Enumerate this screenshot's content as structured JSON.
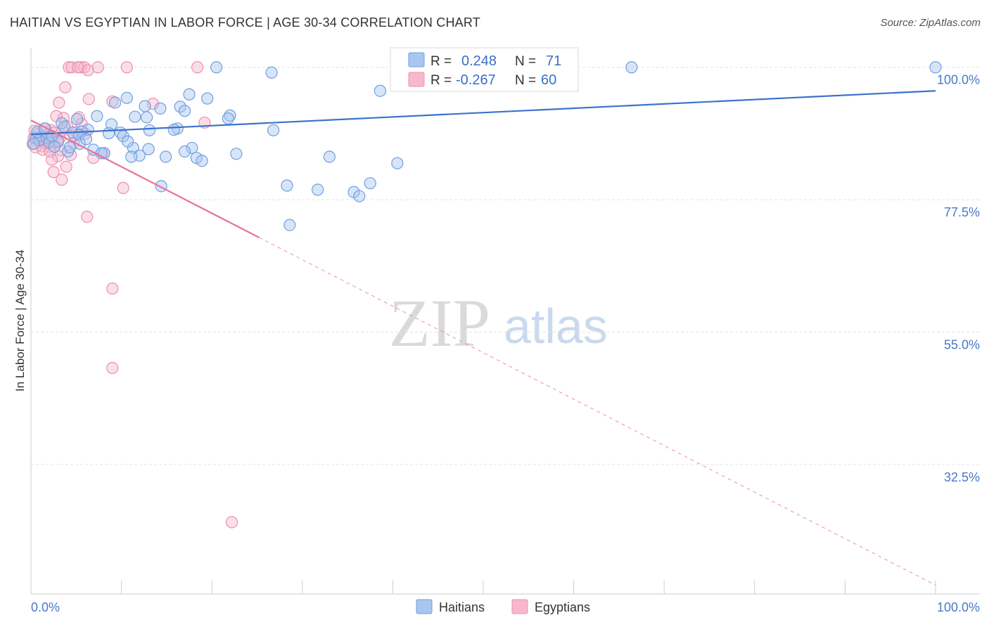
{
  "title": "HAITIAN VS EGYPTIAN IN LABOR FORCE | AGE 30-34 CORRELATION CHART",
  "source": "Source: ZipAtlas.com",
  "watermark": {
    "zip": "ZIP",
    "atlas": "atlas"
  },
  "colors": {
    "haitians_fill": "#a9c6f0",
    "haitians_stroke": "#6f9fe0",
    "haitians_line": "#3a72cc",
    "egyptians_fill": "#f7b8cc",
    "egyptians_stroke": "#ec8fb0",
    "egyptians_line": "#e6739a",
    "grid": "#e3e3e3",
    "tick_label": "#4a78c8"
  },
  "legend_box": {
    "rows": [
      {
        "r_label": "R = ",
        "r_value": "0.248",
        "n_label": "N = ",
        "n_value": "71",
        "series": "haitians"
      },
      {
        "r_label": "R = ",
        "r_value": "-0.267",
        "n_label": "N = ",
        "n_value": "60",
        "series": "egyptians"
      }
    ]
  },
  "chart_data": {
    "type": "scatter",
    "title": "HAITIAN VS EGYPTIAN IN LABOR FORCE | AGE 30-34 CORRELATION CHART",
    "xlabel": "",
    "ylabel": "In Labor Force | Age 30-34",
    "xlim": [
      0,
      100
    ],
    "ylim": [
      10.5,
      102
    ],
    "x_tick_labels": [
      "0.0%",
      "100.0%"
    ],
    "y_ticks": [
      {
        "value": 100,
        "label": "100.0%"
      },
      {
        "value": 77.5,
        "label": "77.5%"
      },
      {
        "value": 55,
        "label": "55.0%"
      },
      {
        "value": 32.5,
        "label": "32.5%"
      }
    ],
    "grid": true,
    "legend": [
      {
        "name": "Haitians",
        "series": "haitians"
      },
      {
        "name": "Egyptians",
        "series": "egyptians"
      }
    ],
    "series": [
      {
        "name": "Haitians",
        "r": 0.248,
        "n": 71,
        "trend": {
          "x0": 0,
          "y0": 88.6,
          "x1": 100,
          "y1": 96.0,
          "dashed_from": null
        },
        "points": [
          [
            20.5,
            100
          ],
          [
            66.4,
            100
          ],
          [
            100,
            100
          ],
          [
            26.6,
            99.1
          ],
          [
            38.6,
            96.0
          ],
          [
            17.5,
            95.4
          ],
          [
            10.6,
            94.8
          ],
          [
            19.5,
            94.7
          ],
          [
            16.5,
            93.3
          ],
          [
            14.3,
            93.0
          ],
          [
            17.0,
            92.6
          ],
          [
            7.3,
            91.7
          ],
          [
            11.5,
            91.6
          ],
          [
            12.8,
            91.5
          ],
          [
            22.0,
            91.8
          ],
          [
            21.8,
            91.3
          ],
          [
            8.9,
            90.3
          ],
          [
            3.4,
            90.5
          ],
          [
            16.2,
            89.6
          ],
          [
            15.8,
            89.4
          ],
          [
            26.8,
            89.3
          ],
          [
            13.1,
            89.3
          ],
          [
            6.3,
            89.4
          ],
          [
            5.6,
            89.1
          ],
          [
            8.6,
            88.8
          ],
          [
            9.9,
            88.9
          ],
          [
            4.6,
            88.9
          ],
          [
            10.2,
            88.3
          ],
          [
            5.3,
            88.5
          ],
          [
            1.2,
            88.3
          ],
          [
            1.8,
            88.0
          ],
          [
            0.5,
            88.0
          ],
          [
            0.9,
            87.6
          ],
          [
            3.0,
            87.4
          ],
          [
            5.4,
            87.0
          ],
          [
            2.0,
            87.2
          ],
          [
            0.3,
            87.0
          ],
          [
            17.8,
            86.3
          ],
          [
            2.6,
            86.5
          ],
          [
            13.0,
            86.1
          ],
          [
            11.3,
            86.3
          ],
          [
            6.9,
            86.0
          ],
          [
            4.1,
            85.7
          ],
          [
            17.0,
            85.7
          ],
          [
            8.1,
            85.4
          ],
          [
            18.3,
            84.6
          ],
          [
            12.0,
            85.0
          ],
          [
            7.8,
            85.4
          ],
          [
            14.9,
            84.8
          ],
          [
            22.7,
            85.3
          ],
          [
            33.0,
            84.8
          ],
          [
            11.1,
            84.8
          ],
          [
            18.9,
            84.1
          ],
          [
            40.5,
            83.7
          ],
          [
            14.4,
            79.8
          ],
          [
            28.3,
            79.9
          ],
          [
            37.5,
            80.3
          ],
          [
            31.7,
            79.2
          ],
          [
            35.7,
            78.8
          ],
          [
            36.3,
            78.1
          ],
          [
            28.6,
            73.2
          ],
          [
            12.6,
            93.4
          ],
          [
            9.3,
            94.0
          ],
          [
            5.1,
            91.2
          ],
          [
            3.7,
            89.9
          ],
          [
            6.1,
            87.8
          ],
          [
            0.7,
            89.0
          ],
          [
            1.5,
            89.6
          ],
          [
            2.3,
            88.3
          ],
          [
            4.3,
            86.4
          ],
          [
            10.7,
            87.4
          ]
        ]
      },
      {
        "name": "Egyptians",
        "r": -0.267,
        "n": 60,
        "trend": {
          "x0": 0,
          "y0": 91.0,
          "x1": 100,
          "y1": 12.0,
          "solid_until_x": 25.2
        },
        "points": [
          [
            4.2,
            100
          ],
          [
            4.5,
            100
          ],
          [
            5.5,
            100
          ],
          [
            5.9,
            100
          ],
          [
            7.4,
            100
          ],
          [
            10.6,
            100
          ],
          [
            18.4,
            100
          ],
          [
            5.2,
            100
          ],
          [
            6.3,
            99.5
          ],
          [
            3.8,
            96.6
          ],
          [
            6.4,
            94.6
          ],
          [
            9.0,
            94.2
          ],
          [
            3.1,
            94.0
          ],
          [
            13.5,
            93.8
          ],
          [
            3.6,
            91.4
          ],
          [
            19.2,
            90.6
          ],
          [
            4.0,
            90.0
          ],
          [
            2.2,
            89.3
          ],
          [
            5.0,
            89.0
          ],
          [
            3.5,
            89.3
          ],
          [
            2.6,
            88.9
          ],
          [
            4.8,
            88.4
          ],
          [
            0.3,
            88.0
          ],
          [
            1.0,
            88.1
          ],
          [
            1.9,
            88.2
          ],
          [
            0.6,
            87.8
          ],
          [
            1.4,
            87.5
          ],
          [
            2.4,
            87.6
          ],
          [
            2.9,
            87.2
          ],
          [
            0.9,
            87.3
          ],
          [
            1.7,
            87.0
          ],
          [
            0.2,
            87.0
          ],
          [
            2.0,
            86.5
          ],
          [
            3.3,
            85.9
          ],
          [
            1.2,
            86.6
          ],
          [
            0.5,
            86.4
          ],
          [
            8.1,
            85.4
          ],
          [
            6.9,
            84.6
          ],
          [
            3.0,
            84.9
          ],
          [
            4.4,
            85.1
          ],
          [
            2.3,
            84.3
          ],
          [
            3.9,
            83.1
          ],
          [
            2.5,
            82.2
          ],
          [
            3.4,
            80.9
          ],
          [
            10.2,
            79.5
          ],
          [
            6.2,
            74.6
          ],
          [
            9.0,
            62.4
          ],
          [
            9.0,
            48.9
          ],
          [
            22.2,
            22.7
          ],
          [
            5.3,
            91.5
          ],
          [
            2.8,
            91.7
          ],
          [
            1.6,
            89.6
          ],
          [
            0.8,
            88.7
          ],
          [
            6.0,
            88.7
          ],
          [
            4.7,
            87.1
          ],
          [
            1.3,
            86.0
          ],
          [
            2.1,
            85.7
          ],
          [
            3.2,
            88.0
          ],
          [
            0.4,
            89.2
          ],
          [
            5.6,
            90.4
          ]
        ]
      }
    ]
  }
}
